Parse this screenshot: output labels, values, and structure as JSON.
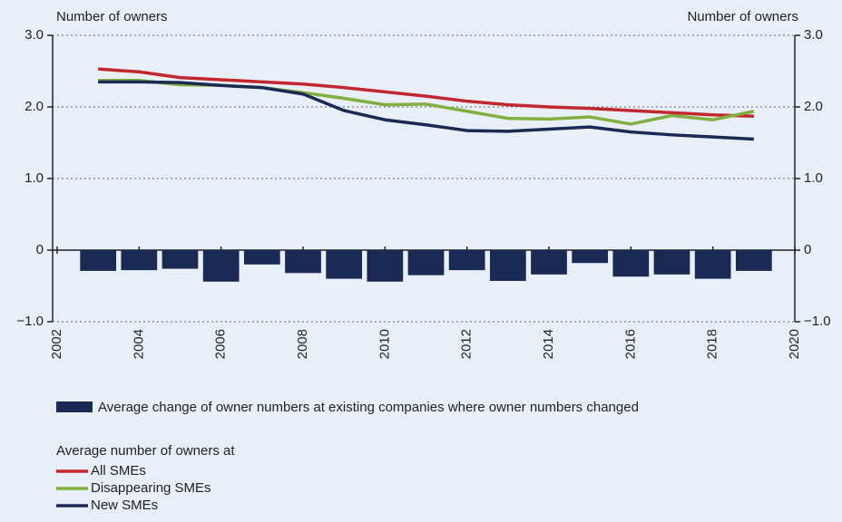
{
  "chart_data": {
    "type": "combo",
    "y_label": "Number of owners",
    "y2_label": "Number of owners",
    "x": [
      2003,
      2004,
      2005,
      2006,
      2007,
      2008,
      2009,
      2010,
      2011,
      2012,
      2013,
      2014,
      2015,
      2016,
      2017,
      2018,
      2019
    ],
    "xlim": [
      2002,
      2020
    ],
    "xticks": [
      2002,
      2004,
      2006,
      2008,
      2010,
      2012,
      2014,
      2016,
      2018,
      2020
    ],
    "ylim": [
      -1,
      3
    ],
    "yticks": [
      {
        "value": -1,
        "label": "−1.0"
      },
      0,
      {
        "value": 1,
        "label": "1.0"
      },
      {
        "value": 2,
        "label": "2.0"
      },
      {
        "value": 3,
        "label": "3.0"
      }
    ],
    "y2lim": [
      -1,
      3
    ],
    "y2ticks": [
      {
        "value": -1,
        "label": "−1.0"
      },
      0,
      {
        "value": 1,
        "label": "1.0"
      },
      {
        "value": 2,
        "label": "2.0"
      },
      {
        "value": 3,
        "label": "3.0"
      }
    ],
    "grid": true,
    "legend_title": "Average number of owners at",
    "series": [
      {
        "name": "Average change of owner numbers at existing companies where owner numbers changed",
        "type": "bar",
        "color": "#1b2a55",
        "values": [
          -0.29,
          -0.28,
          -0.26,
          -0.44,
          -0.2,
          -0.32,
          -0.4,
          -0.44,
          -0.35,
          -0.28,
          -0.43,
          -0.34,
          -0.18,
          -0.37,
          -0.34,
          -0.4,
          -0.29
        ]
      },
      {
        "name": "All SMEs",
        "type": "line",
        "color": "#c0282d",
        "values": [
          2.53,
          2.49,
          2.41,
          2.38,
          2.35,
          2.32,
          2.27,
          2.21,
          2.15,
          2.08,
          2.03,
          2.0,
          1.98,
          1.95,
          1.92,
          1.89,
          1.87
        ]
      },
      {
        "name": "Disappearing SMEs",
        "type": "line",
        "color": "#7fb03f",
        "values": [
          2.37,
          2.37,
          2.31,
          2.3,
          2.27,
          2.2,
          2.12,
          2.03,
          2.04,
          1.94,
          1.84,
          1.83,
          1.86,
          1.76,
          1.88,
          1.82,
          1.94
        ]
      },
      {
        "name": "New SMEs",
        "type": "line",
        "color": "#1b2a55",
        "values": [
          2.35,
          2.35,
          2.34,
          2.3,
          2.27,
          2.18,
          1.95,
          1.82,
          1.75,
          1.67,
          1.66,
          1.69,
          1.72,
          1.65,
          1.61,
          1.58,
          1.55
        ]
      }
    ]
  }
}
